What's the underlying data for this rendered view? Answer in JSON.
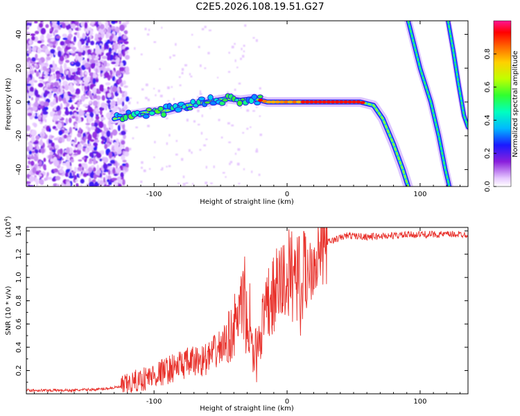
{
  "title": "C2E5.2026.108.19.51.G27",
  "chart_data": [
    {
      "type": "heatmap",
      "xlabel": "Height of straight line (km)",
      "ylabel": "Frequency (Hz)",
      "xlim": [
        -196,
        136
      ],
      "ylim": [
        -50,
        48
      ],
      "xticks": [
        -100,
        0,
        100
      ],
      "yticks": [
        -40,
        -20,
        0,
        20,
        40
      ],
      "colorbar": {
        "label": "Normalized spectral amplitude",
        "range": [
          0,
          1
        ],
        "ticks": [
          "0.0",
          "0.2",
          "0.4",
          "0.6",
          "0.8"
        ],
        "tick_values": [
          0,
          0.2,
          0.4,
          0.6,
          0.8
        ]
      },
      "features": {
        "noise_region": {
          "x": [
            -196,
            -120
          ],
          "y": [
            -50,
            48
          ],
          "level": 0.12
        },
        "main_trace": [
          [
            -130,
            -10
          ],
          [
            -120,
            -8
          ],
          [
            -105,
            -6
          ],
          [
            -90,
            -5
          ],
          [
            -75,
            -2
          ],
          [
            -60,
            0
          ],
          [
            -45,
            2
          ],
          [
            -35,
            1
          ],
          [
            -25,
            2
          ],
          [
            -15,
            0
          ],
          [
            0,
            0
          ],
          [
            20,
            0
          ],
          [
            40,
            0
          ],
          [
            55,
            0
          ],
          [
            65,
            -2
          ],
          [
            72,
            -10
          ],
          [
            80,
            -25
          ],
          [
            87,
            -40
          ],
          [
            91,
            -50
          ]
        ],
        "ghost_trace_1": [
          [
            91,
            48
          ],
          [
            100,
            20
          ],
          [
            108,
            0
          ],
          [
            114,
            -20
          ],
          [
            119,
            -40
          ],
          [
            122,
            -50
          ]
        ],
        "ghost_trace_2": [
          [
            121,
            48
          ],
          [
            125,
            30
          ],
          [
            129,
            10
          ],
          [
            133,
            -8
          ],
          [
            136,
            -15
          ]
        ]
      }
    },
    {
      "type": "line",
      "xlabel": "Height of straight line (km)",
      "ylabel": "SNR (10 * v/v)",
      "scale_note": "(x10^4)",
      "xlim": [
        -196,
        136
      ],
      "ylim": [
        0,
        1.43
      ],
      "xticks": [
        -100,
        0,
        100
      ],
      "yticks": [
        "0.2",
        "0.4",
        "0.6",
        "0.8",
        "1.0",
        "1.2",
        "1.4"
      ],
      "ytick_values": [
        0.2,
        0.4,
        0.6,
        0.8,
        1.0,
        1.2,
        1.4
      ],
      "color": "#e8302a",
      "envelope": [
        [
          -196,
          0.03
        ],
        [
          -160,
          0.03
        ],
        [
          -140,
          0.04
        ],
        [
          -125,
          0.06
        ],
        [
          -110,
          0.12
        ],
        [
          -95,
          0.18
        ],
        [
          -80,
          0.25
        ],
        [
          -60,
          0.3
        ],
        [
          -45,
          0.45
        ],
        [
          -33,
          0.75
        ],
        [
          -25,
          0.3
        ],
        [
          -20,
          0.55
        ],
        [
          -12,
          0.8
        ],
        [
          -5,
          0.95
        ],
        [
          5,
          1.05
        ],
        [
          12,
          1.0
        ],
        [
          20,
          1.15
        ],
        [
          30,
          1.3
        ],
        [
          45,
          1.36
        ],
        [
          60,
          1.35
        ],
        [
          80,
          1.36
        ],
        [
          100,
          1.37
        ],
        [
          120,
          1.37
        ],
        [
          136,
          1.37
        ]
      ],
      "spikes": [
        [
          -32,
          1.18
        ],
        [
          -28,
          0.95
        ],
        [
          -14,
          1.08
        ],
        [
          9,
          1.35
        ],
        [
          0,
          1.12
        ],
        [
          -23,
          0.1
        ],
        [
          10,
          0.5
        ],
        [
          -20,
          0.3
        ]
      ]
    }
  ]
}
